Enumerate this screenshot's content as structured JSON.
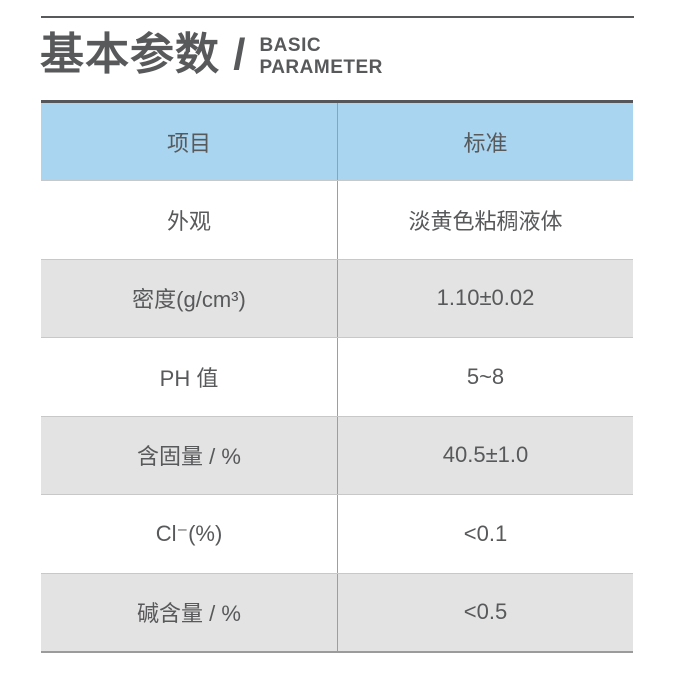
{
  "title": {
    "zh": "基本参数 /",
    "en_line1": "BASIC",
    "en_line2": "PARAMETER"
  },
  "colors": {
    "header_bg": "#A9D5F0",
    "alt_row_bg": "#E3E3E3",
    "text": "#58595B",
    "rule": "#58595B"
  },
  "table": {
    "headers": [
      "项目",
      "标准"
    ],
    "rows": [
      {
        "item": "外观",
        "value": "淡黄色粘稠液体"
      },
      {
        "item": "密度(g/cm³)",
        "value": "1.10±0.02"
      },
      {
        "item": "PH 值",
        "value": "5~8"
      },
      {
        "item": "含固量 / %",
        "value": "40.5±1.0"
      },
      {
        "item": "Cl⁻(%)",
        "value": "<0.1"
      },
      {
        "item": "碱含量 / %",
        "value": "<0.5"
      }
    ]
  }
}
